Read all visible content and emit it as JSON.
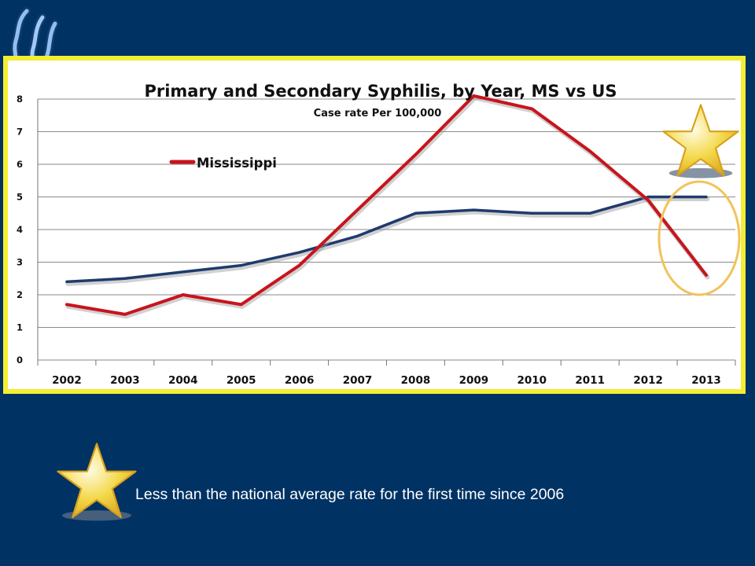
{
  "colors": {
    "background": "#003263",
    "frame": "#f4ee33",
    "mississippi": "#c8141c",
    "us": "#1f3b6e",
    "highlight": "#f1c35a"
  },
  "icons": {
    "logo": "state-health-logo-icon",
    "star_top": "star-icon",
    "star_bottom": "star-icon"
  },
  "footer": {
    "text": "Less than the national average rate for the first time since 2006"
  },
  "chart_data": {
    "type": "line",
    "title": "Primary and Secondary Syphilis, by Year, MS vs US",
    "subtitle": "Case rate Per 100,000",
    "categories": [
      "2002",
      "2003",
      "2004",
      "2005",
      "2006",
      "2007",
      "2008",
      "2009",
      "2010",
      "2011",
      "2012",
      "2013"
    ],
    "series": [
      {
        "name": "Mississippi",
        "color": "#c8141c",
        "values": [
          1.7,
          1.4,
          2.0,
          1.7,
          2.9,
          4.6,
          6.3,
          8.1,
          7.7,
          6.4,
          4.9,
          2.6
        ]
      },
      {
        "name": "",
        "color": "#1f3b6e",
        "values": [
          2.4,
          2.5,
          2.7,
          2.9,
          3.3,
          3.8,
          4.5,
          4.6,
          4.5,
          4.5,
          5.0,
          5.0
        ]
      }
    ],
    "ylim": [
      0,
      8
    ],
    "yticks": [
      0,
      1,
      2,
      3,
      4,
      5,
      6,
      7,
      8
    ],
    "grid": true,
    "legend": "upper-left",
    "annotation": "circle around 2013 values"
  }
}
